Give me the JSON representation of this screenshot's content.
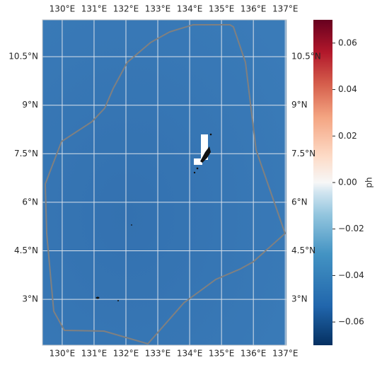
{
  "map": {
    "lonlim": [
      129.38,
      137.04
    ],
    "latlim": [
      1.58,
      11.64
    ],
    "lon_ticks": [
      {
        "value": 130,
        "label": "130°E"
      },
      {
        "value": 131,
        "label": "131°E"
      },
      {
        "value": 132,
        "label": "132°E"
      },
      {
        "value": 133,
        "label": "133°E"
      },
      {
        "value": 134,
        "label": "134°E"
      },
      {
        "value": 135,
        "label": "135°E"
      },
      {
        "value": 136,
        "label": "136°E"
      },
      {
        "value": 137,
        "label": "137°E"
      }
    ],
    "lat_ticks": [
      {
        "value": 3,
        "label": "3°N"
      },
      {
        "value": 4.5,
        "label": "4.5°N"
      },
      {
        "value": 6,
        "label": "6°N"
      },
      {
        "value": 7.5,
        "label": "7.5°N"
      },
      {
        "value": 9,
        "label": "9°N"
      },
      {
        "value": 10.5,
        "label": "10.5°N"
      }
    ],
    "grid": true
  },
  "colorbar": {
    "label": "ph",
    "lim": [
      -0.07,
      0.07
    ],
    "ticks": [
      {
        "value": -0.06,
        "label": "−0.06"
      },
      {
        "value": -0.04,
        "label": "−0.04"
      },
      {
        "value": -0.02,
        "label": "−0.02"
      },
      {
        "value": 0,
        "label": "0.00"
      },
      0.02,
      0.04,
      0.06
    ]
  }
}
